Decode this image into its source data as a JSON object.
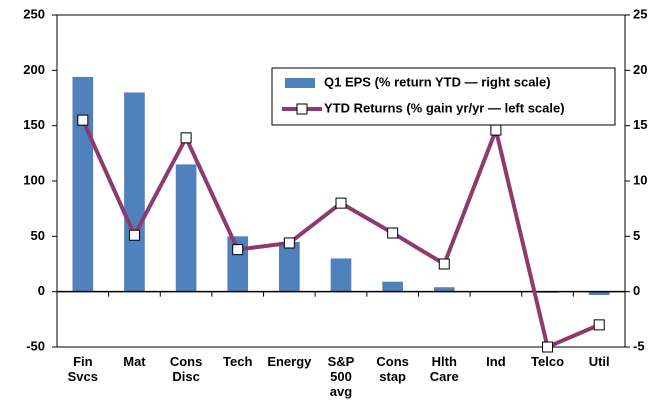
{
  "chart_data": {
    "type": "bar-line",
    "categories": [
      "Fin\nSvcs",
      "Mat",
      "Cons\nDisc",
      "Tech",
      "Energy",
      "S&P\n500\navg",
      "Cons\nstap",
      "Hlth\nCare",
      "Ind",
      "Telco",
      "Util"
    ],
    "series": [
      {
        "name": "Q1 EPS (% return YTD — right scale)",
        "type": "bar",
        "axis": "y2",
        "color": "#4f81bd",
        "values": [
          19.4,
          18,
          11.5,
          5,
          4.5,
          3,
          0.9,
          0.4,
          0,
          -0.1,
          -0.3
        ]
      },
      {
        "name": "YTD Returns (% gain yr/yr — left scale)",
        "type": "line",
        "axis": "y",
        "color": "#8e3a6e",
        "values": [
          155,
          51,
          139,
          38,
          44,
          80,
          53,
          25,
          146,
          -50,
          -30
        ]
      }
    ],
    "ylim": [
      -50,
      250
    ],
    "yticks": [
      -50,
      0,
      50,
      100,
      150,
      200,
      250
    ],
    "y2lim": [
      -5,
      25
    ],
    "y2ticks": [
      -5,
      0,
      5,
      10,
      15,
      20,
      25
    ]
  }
}
